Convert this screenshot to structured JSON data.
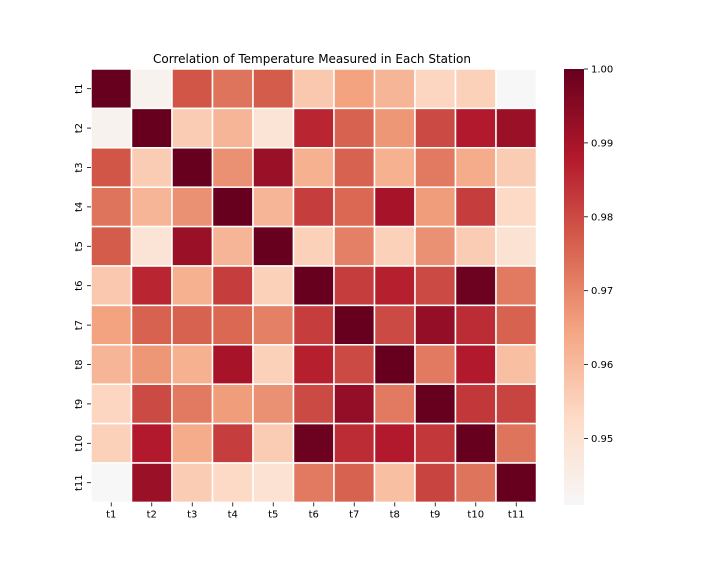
{
  "chart_data": {
    "type": "heatmap",
    "title": "Correlation of Temperature Measured in Each Station",
    "xlabel": "",
    "ylabel": "",
    "x_categories": [
      "t1",
      "t2",
      "t3",
      "t4",
      "t5",
      "t6",
      "t7",
      "t8",
      "t9",
      "t10",
      "t11"
    ],
    "y_categories": [
      "t1",
      "t2",
      "t3",
      "t4",
      "t5",
      "t6",
      "t7",
      "t8",
      "t9",
      "t10",
      "t11"
    ],
    "values": [
      [
        1.0,
        0.943,
        0.978,
        0.973,
        0.977,
        0.957,
        0.965,
        0.961,
        0.954,
        0.955,
        0.941
      ],
      [
        0.943,
        1.0,
        0.956,
        0.961,
        0.949,
        0.986,
        0.976,
        0.967,
        0.98,
        0.988,
        0.992
      ],
      [
        0.978,
        0.956,
        1.0,
        0.968,
        0.992,
        0.962,
        0.976,
        0.962,
        0.972,
        0.963,
        0.956
      ],
      [
        0.973,
        0.961,
        0.968,
        1.0,
        0.961,
        0.982,
        0.975,
        0.99,
        0.966,
        0.982,
        0.953
      ],
      [
        0.977,
        0.949,
        0.992,
        0.961,
        1.0,
        0.955,
        0.971,
        0.955,
        0.968,
        0.956,
        0.95
      ],
      [
        0.957,
        0.986,
        0.962,
        0.982,
        0.955,
        1.0,
        0.982,
        0.987,
        0.98,
        0.999,
        0.972
      ],
      [
        0.965,
        0.976,
        0.976,
        0.975,
        0.971,
        0.982,
        1.0,
        0.98,
        0.993,
        0.985,
        0.976
      ],
      [
        0.961,
        0.967,
        0.962,
        0.99,
        0.955,
        0.987,
        0.98,
        1.0,
        0.972,
        0.988,
        0.959
      ],
      [
        0.954,
        0.98,
        0.972,
        0.966,
        0.968,
        0.98,
        0.993,
        0.972,
        1.0,
        0.983,
        0.981
      ],
      [
        0.955,
        0.988,
        0.963,
        0.982,
        0.956,
        0.999,
        0.985,
        0.988,
        0.983,
        1.0,
        0.973
      ],
      [
        0.941,
        0.992,
        0.956,
        0.953,
        0.95,
        0.972,
        0.976,
        0.959,
        0.981,
        0.973,
        1.0
      ]
    ],
    "colorbar": {
      "min": 0.941,
      "max": 1.0,
      "ticks": [
        0.95,
        0.96,
        0.97,
        0.98,
        0.99,
        1.0
      ],
      "tick_labels": [
        "0.95",
        "0.96",
        "0.97",
        "0.98",
        "0.99",
        "1.00"
      ],
      "colormap": [
        "#f7f7f7",
        "#fddbc7",
        "#f4a582",
        "#d6604d",
        "#b2182b",
        "#67001f"
      ]
    },
    "cell_border_color": "#ffffff",
    "grid": false,
    "legend": "colorbar-right"
  }
}
